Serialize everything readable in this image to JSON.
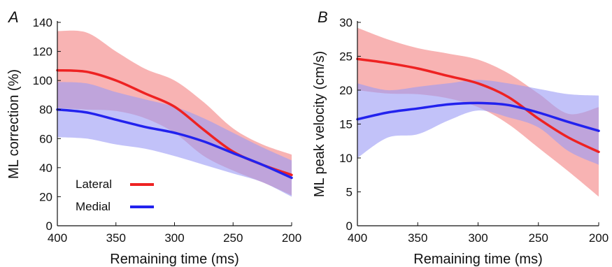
{
  "chart_data": [
    {
      "type": "line",
      "panel_label": "A",
      "xlabel": "Remaining time (ms)",
      "ylabel": "ML correction (%)",
      "xlim": [
        400,
        200
      ],
      "ylim": [
        0,
        140
      ],
      "xticks": [
        400,
        350,
        300,
        250,
        200
      ],
      "yticks": [
        0,
        20,
        40,
        60,
        80,
        100,
        120,
        140
      ],
      "grid": false,
      "legend": "bottom-left",
      "x": [
        400,
        375,
        350,
        325,
        300,
        275,
        250,
        225,
        200
      ],
      "series": [
        {
          "name": "Lateral",
          "color": "#ee2222",
          "band_color": "#f59a9a",
          "values": [
            107,
            106,
            100,
            91,
            82,
            66,
            51,
            42,
            35
          ],
          "upper": [
            134,
            133,
            120,
            108,
            100,
            85,
            67,
            56,
            49
          ],
          "lower": [
            81,
            80,
            79,
            74,
            64,
            48,
            38,
            30,
            21
          ]
        },
        {
          "name": "Medial",
          "color": "#2222ee",
          "band_color": "#9a9af5",
          "values": [
            80,
            78,
            73,
            68,
            64,
            58,
            50,
            42,
            33
          ],
          "upper": [
            99,
            98,
            92,
            87,
            82,
            74,
            64,
            54,
            45
          ],
          "lower": [
            61,
            60,
            56,
            53,
            48,
            42,
            36,
            30,
            20
          ]
        }
      ]
    },
    {
      "type": "line",
      "panel_label": "B",
      "xlabel": "Remaining time (ms)",
      "ylabel": "ML peak velocity (cm/s)",
      "xlim": [
        400,
        200
      ],
      "ylim": [
        0,
        30
      ],
      "xticks": [
        400,
        350,
        300,
        250,
        200
      ],
      "yticks": [
        0,
        5,
        10,
        15,
        20,
        25,
        30
      ],
      "grid": false,
      "x": [
        400,
        375,
        350,
        325,
        300,
        275,
        250,
        225,
        200
      ],
      "series": [
        {
          "name": "Lateral",
          "color": "#ee2222",
          "band_color": "#f59a9a",
          "values": [
            24.6,
            24,
            23.2,
            22.1,
            21,
            19,
            15.8,
            13,
            10.9
          ],
          "upper": [
            29.2,
            27.5,
            26.2,
            25.4,
            24.5,
            22.5,
            19.5,
            16.5,
            17.5
          ],
          "lower": [
            20,
            19.5,
            19.4,
            18.8,
            17.5,
            15,
            11.5,
            8,
            4.3
          ]
        },
        {
          "name": "Medial",
          "color": "#2222ee",
          "band_color": "#9a9af5",
          "values": [
            15.7,
            16.7,
            17.3,
            17.9,
            18.1,
            17.8,
            16.7,
            15.3,
            14
          ],
          "upper": [
            21,
            20,
            20.5,
            21,
            21.5,
            21,
            20.2,
            19.4,
            19.2
          ],
          "lower": [
            10,
            13,
            13.5,
            15.5,
            17,
            16,
            14.5,
            11,
            9
          ]
        }
      ]
    }
  ]
}
